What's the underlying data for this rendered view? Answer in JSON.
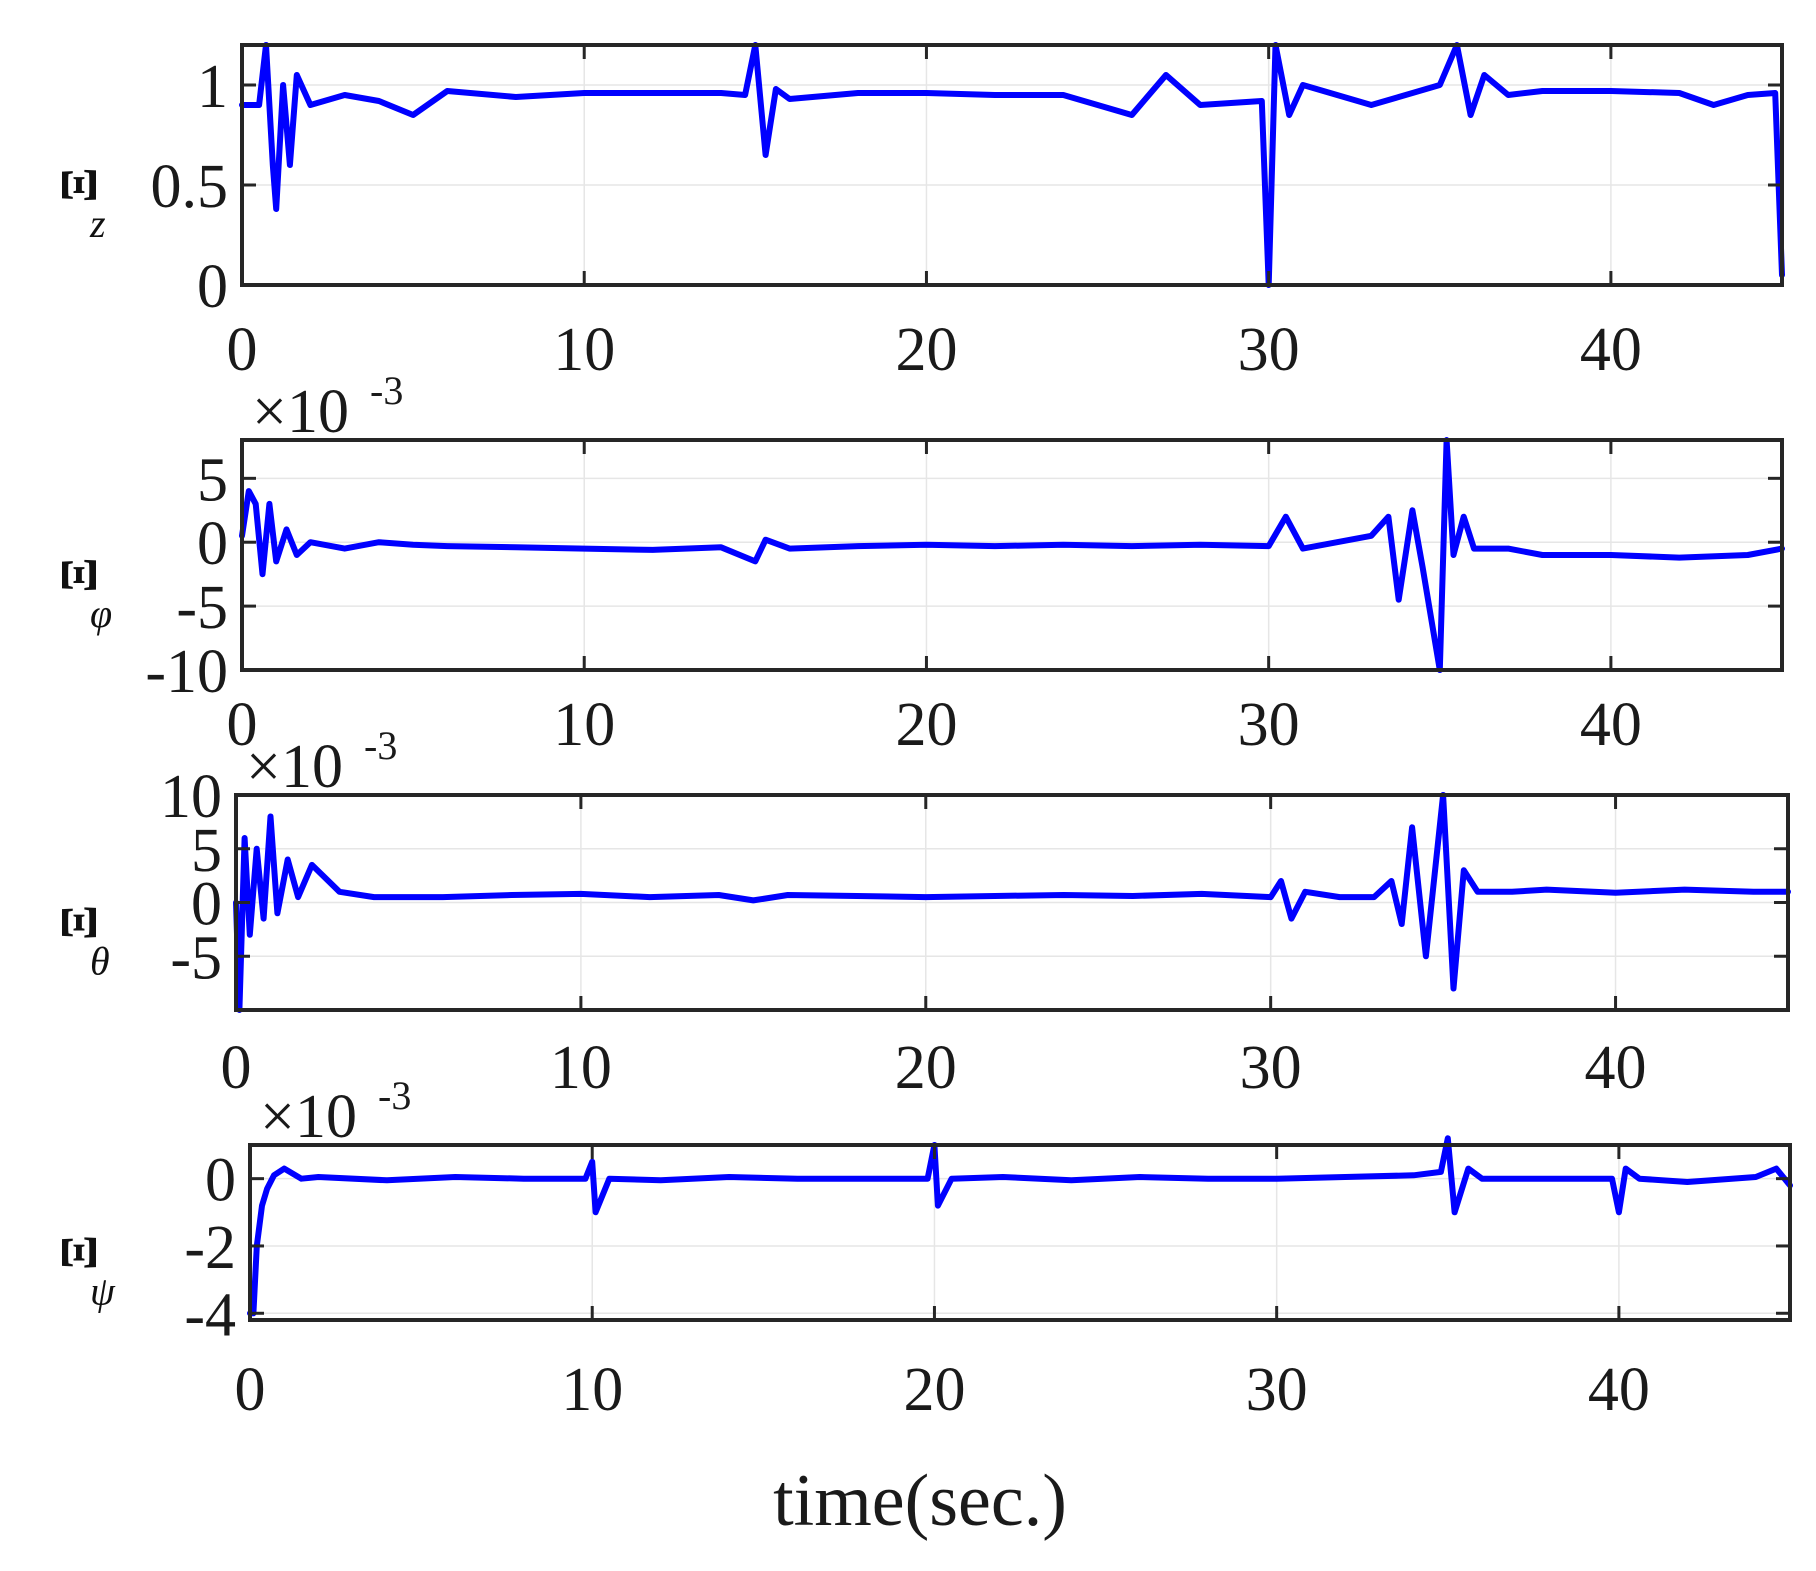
{
  "chart_data": [
    {
      "type": "line",
      "ylabel": "Ξ",
      "ylabel_sub": "z",
      "xlim": [
        0,
        45
      ],
      "ylim": [
        0,
        1.2
      ],
      "xticks": [
        0,
        10,
        20,
        30,
        40
      ],
      "xtick_labels": [
        "0",
        "10",
        "20",
        "30",
        "40"
      ],
      "yticks": [
        0,
        0.5,
        1
      ],
      "ytick_labels": [
        "0",
        "0.5",
        "1"
      ],
      "exponent_label": "",
      "grid": true,
      "series": [
        {
          "color": "#0000ff",
          "x": [
            0,
            0.5,
            0.7,
            0.9,
            1.0,
            1.2,
            1.4,
            1.6,
            2,
            3,
            4,
            5,
            6,
            8,
            10,
            12,
            14,
            14.7,
            15.0,
            15.3,
            15.6,
            16,
            18,
            20,
            22,
            24,
            25,
            26,
            27,
            28,
            29.8,
            30.0,
            30.2,
            30.6,
            31,
            32,
            33,
            34,
            35,
            35.5,
            35.9,
            36.3,
            37,
            38,
            40,
            42,
            43,
            44,
            44.8,
            45.0
          ],
          "y": [
            0.9,
            0.9,
            1.2,
            0.6,
            0.38,
            1.0,
            0.6,
            1.05,
            0.9,
            0.95,
            0.92,
            0.85,
            0.97,
            0.94,
            0.96,
            0.96,
            0.96,
            0.95,
            1.2,
            0.65,
            0.98,
            0.93,
            0.96,
            0.96,
            0.95,
            0.95,
            0.9,
            0.85,
            1.05,
            0.9,
            0.92,
            0.0,
            1.2,
            0.85,
            1.0,
            0.95,
            0.9,
            0.95,
            1.0,
            1.2,
            0.85,
            1.05,
            0.95,
            0.97,
            0.97,
            0.96,
            0.9,
            0.95,
            0.96,
            0.05
          ]
        }
      ]
    },
    {
      "type": "line",
      "ylabel": "Ξ",
      "ylabel_sub": "φ",
      "xlim": [
        0,
        45
      ],
      "ylim": [
        -10,
        8
      ],
      "xticks": [
        0,
        10,
        20,
        30,
        40
      ],
      "xtick_labels": [
        "0",
        "10",
        "20",
        "30",
        "40"
      ],
      "yticks": [
        -10,
        -5,
        0,
        5
      ],
      "ytick_labels": [
        "-10",
        "-5",
        "0",
        "5"
      ],
      "exponent_label": "×10",
      "exponent_power": "-3",
      "grid": true,
      "series": [
        {
          "color": "#0000ff",
          "x": [
            0,
            0.2,
            0.4,
            0.6,
            0.8,
            1.0,
            1.3,
            1.6,
            2,
            3,
            4,
            5,
            6,
            8,
            10,
            12,
            14,
            15.0,
            15.3,
            16,
            18,
            20,
            22,
            24,
            26,
            28,
            30,
            30.5,
            31,
            32,
            33,
            33.5,
            33.8,
            34.2,
            34.5,
            35.0,
            35.2,
            35.4,
            35.7,
            36,
            37,
            38,
            40,
            42,
            44,
            45
          ],
          "y": [
            0.5,
            4,
            3,
            -2.5,
            3,
            -1.5,
            1,
            -1,
            0,
            -0.5,
            0,
            -0.2,
            -0.3,
            -0.4,
            -0.5,
            -0.6,
            -0.4,
            -1.5,
            0.2,
            -0.5,
            -0.3,
            -0.2,
            -0.3,
            -0.2,
            -0.3,
            -0.2,
            -0.3,
            2,
            -0.5,
            0,
            0.5,
            2,
            -4.5,
            2.5,
            -2,
            -10,
            8,
            -1,
            2,
            -0.5,
            -0.5,
            -1,
            -1,
            -1.2,
            -1.0,
            -0.5
          ]
        }
      ]
    },
    {
      "type": "line",
      "ylabel": "Ξ",
      "ylabel_sub": "θ",
      "xlim": [
        0,
        45
      ],
      "ylim": [
        -10,
        10
      ],
      "xticks": [
        0,
        10,
        20,
        30,
        40
      ],
      "xtick_labels": [
        "0",
        "10",
        "20",
        "30",
        "40"
      ],
      "yticks": [
        -5,
        0,
        5,
        10
      ],
      "ytick_labels": [
        "-5",
        "0",
        "5",
        "10"
      ],
      "exponent_label": "×10",
      "exponent_power": "-3",
      "grid": true,
      "series": [
        {
          "color": "#0000ff",
          "x": [
            0,
            0.1,
            0.25,
            0.4,
            0.6,
            0.8,
            1.0,
            1.2,
            1.5,
            1.8,
            2.2,
            3,
            4,
            6,
            8,
            10,
            12,
            14,
            15,
            16,
            18,
            20,
            22,
            24,
            26,
            28,
            30,
            30.3,
            30.6,
            31,
            32,
            33,
            33.5,
            33.8,
            34.1,
            34.5,
            35.0,
            35.3,
            35.6,
            36,
            37,
            38,
            40,
            42,
            44,
            45
          ],
          "y": [
            0,
            -10,
            6,
            -3,
            5,
            -1.5,
            8,
            -1,
            4,
            0.5,
            3.5,
            1,
            0.5,
            0.5,
            0.7,
            0.8,
            0.5,
            0.7,
            0.2,
            0.7,
            0.6,
            0.5,
            0.6,
            0.7,
            0.6,
            0.8,
            0.5,
            2,
            -1.5,
            1,
            0.5,
            0.5,
            2,
            -2,
            7,
            -5,
            10,
            -8,
            3,
            1,
            1,
            1.2,
            0.9,
            1.2,
            1.0,
            1.0
          ]
        }
      ]
    },
    {
      "type": "line",
      "ylabel": "Ξ",
      "ylabel_sub": "ψ",
      "xlim": [
        0,
        45
      ],
      "ylim": [
        -4.2,
        1
      ],
      "xticks": [
        0,
        10,
        20,
        30,
        40
      ],
      "xtick_labels": [
        "0",
        "10",
        "20",
        "30",
        "40"
      ],
      "yticks": [
        -4,
        -2,
        0
      ],
      "ytick_labels": [
        "-4",
        "-2",
        "0"
      ],
      "exponent_label": "×10",
      "exponent_power": "-3",
      "xlabel": "time(sec.)",
      "grid": true,
      "series": [
        {
          "color": "#0000ff",
          "x": [
            0,
            0.1,
            0.2,
            0.35,
            0.5,
            0.7,
            1.0,
            1.5,
            2,
            4,
            6,
            8,
            9.8,
            10.0,
            10.1,
            10.5,
            12,
            14,
            16,
            18,
            19.8,
            20.0,
            20.1,
            20.5,
            22,
            24,
            26,
            28,
            30,
            32,
            34,
            34.8,
            35.0,
            35.2,
            35.6,
            36,
            38,
            39.8,
            40.0,
            40.2,
            40.6,
            42,
            44,
            44.6,
            45
          ],
          "y": [
            -4,
            -4,
            -2,
            -0.8,
            -0.3,
            0.1,
            0.3,
            0,
            0.05,
            -0.05,
            0.05,
            0,
            0,
            0.5,
            -1.0,
            0,
            -0.05,
            0.05,
            0,
            0,
            0,
            1.0,
            -0.8,
            0,
            0.05,
            -0.05,
            0.05,
            0,
            0,
            0.05,
            0.1,
            0.2,
            1.2,
            -1.0,
            0.3,
            0,
            0,
            0,
            -1.0,
            0.3,
            0,
            -0.1,
            0.05,
            0.3,
            -0.2
          ]
        }
      ]
    }
  ]
}
